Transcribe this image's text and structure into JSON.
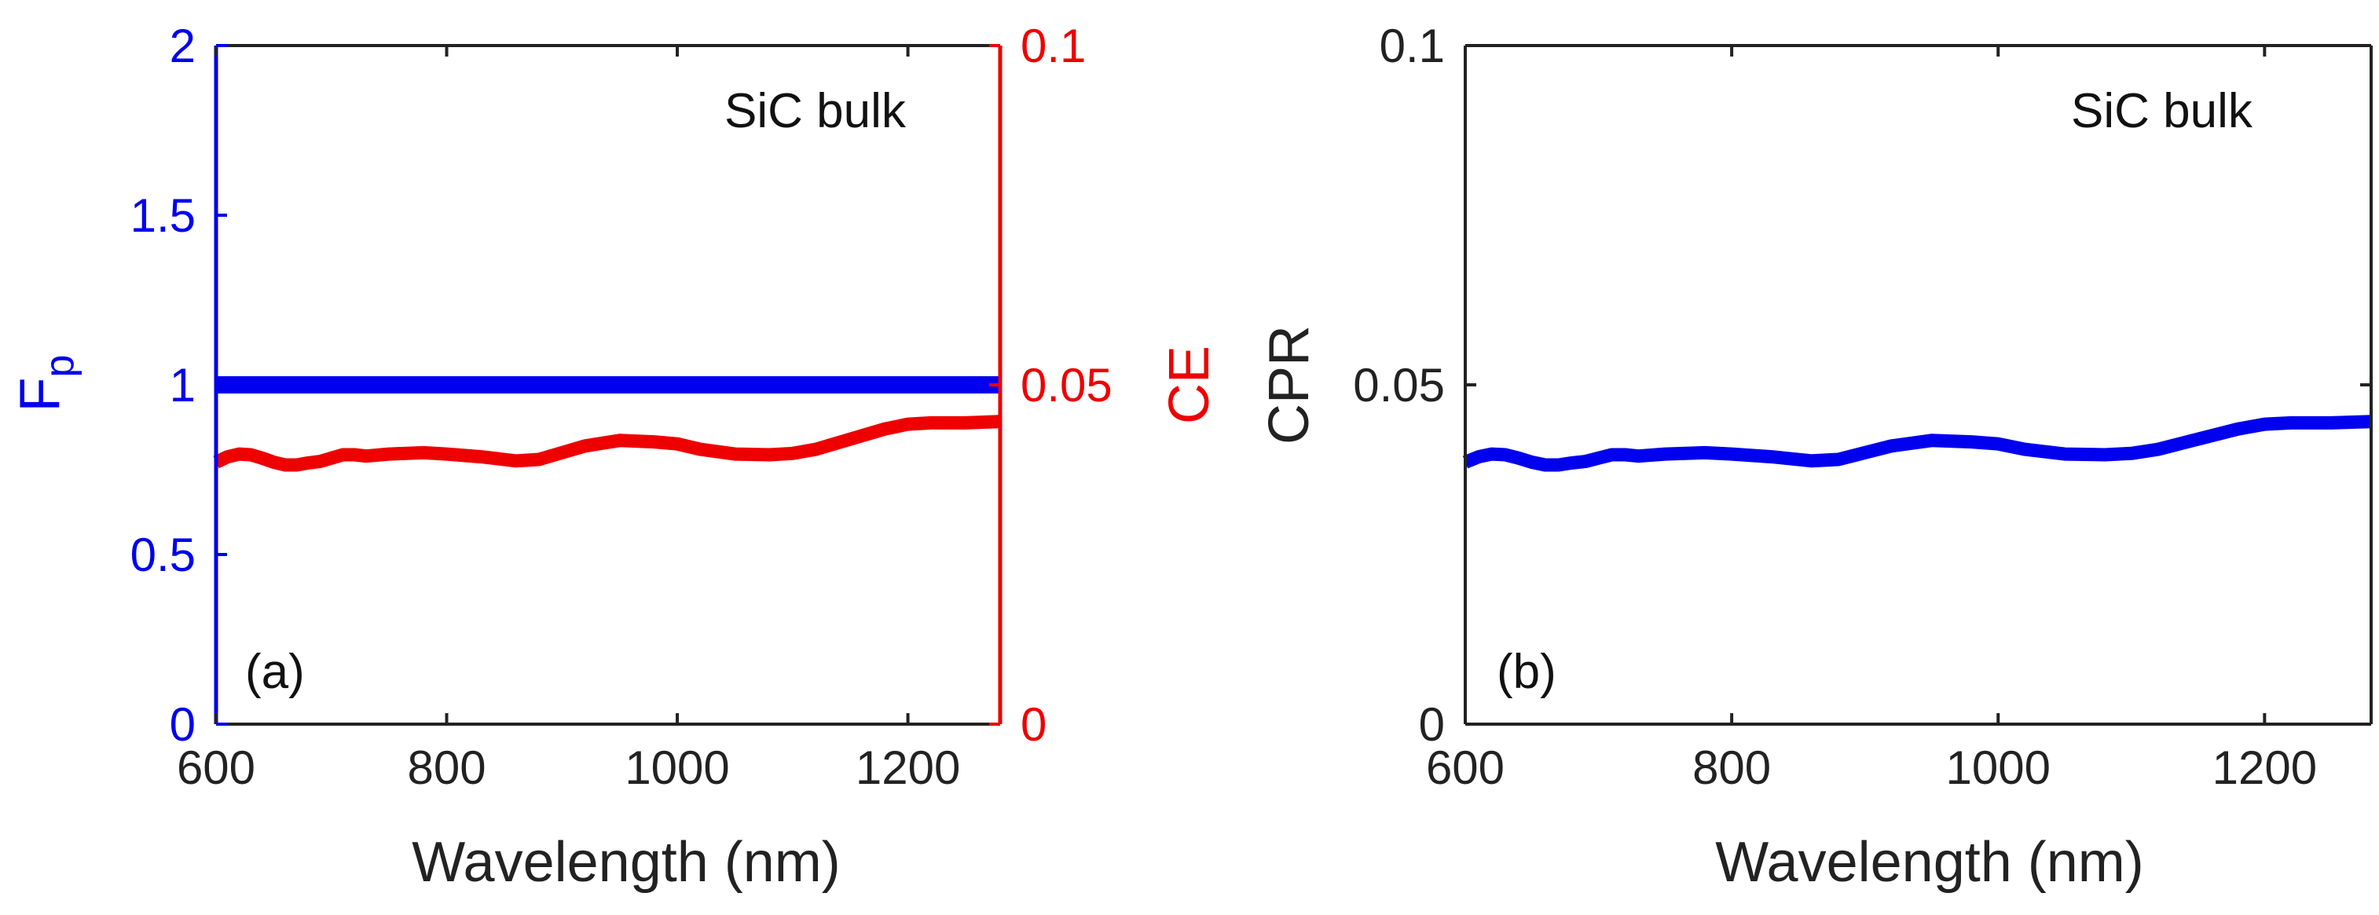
{
  "chart_data": [
    {
      "panel": "(a)",
      "type": "line",
      "annotation": "SiC bulk",
      "xlabel": "Wavelength (nm)",
      "xlim": [
        600,
        1280
      ],
      "xticks": [
        600,
        800,
        1000,
        1200
      ],
      "xtick_labels": [
        "600",
        "800",
        "1000",
        "1200"
      ],
      "ylabel_left": {
        "main": "F",
        "sub": "p"
      },
      "ylim_left": [
        0,
        2
      ],
      "yticks_left": [
        0,
        0.5,
        1,
        1.5,
        2
      ],
      "ytick_labels_left": [
        "0",
        "0.5",
        "1",
        "1.5",
        "2"
      ],
      "ylabel_right": "CE",
      "ylim_right": [
        0,
        0.1
      ],
      "yticks_right": [
        0,
        0.05,
        0.1
      ],
      "ytick_labels_right": [
        "0",
        "0.05",
        "0.1"
      ],
      "series": [
        {
          "name": "F_p",
          "axis": "left",
          "color": "#0000ee",
          "x": [
            600,
            1280
          ],
          "values": [
            1.0,
            1.0
          ]
        },
        {
          "name": "CE",
          "axis": "right",
          "color": "#ee0000",
          "x": [
            600,
            610,
            620,
            630,
            640,
            650,
            660,
            670,
            680,
            690,
            700,
            710,
            720,
            730,
            750,
            780,
            800,
            830,
            860,
            880,
            900,
            920,
            950,
            980,
            1000,
            1020,
            1050,
            1080,
            1100,
            1120,
            1150,
            1180,
            1200,
            1220,
            1250,
            1280
          ],
          "values": [
            0.0386,
            0.0394,
            0.0398,
            0.0397,
            0.0392,
            0.0386,
            0.0382,
            0.0382,
            0.0385,
            0.0387,
            0.0392,
            0.0397,
            0.0397,
            0.0395,
            0.0398,
            0.04,
            0.0398,
            0.0394,
            0.0388,
            0.039,
            0.04,
            0.041,
            0.0418,
            0.0416,
            0.0413,
            0.0405,
            0.0398,
            0.0397,
            0.0399,
            0.0405,
            0.042,
            0.0435,
            0.0442,
            0.0444,
            0.0444,
            0.0446
          ]
        }
      ]
    },
    {
      "panel": "(b)",
      "type": "line",
      "annotation": "SiC bulk",
      "xlabel": "Wavelength (nm)",
      "xlim": [
        600,
        1280
      ],
      "xticks": [
        600,
        800,
        1000,
        1200
      ],
      "xtick_labels": [
        "600",
        "800",
        "1000",
        "1200"
      ],
      "ylabel": "CPR",
      "ylim": [
        0,
        0.1
      ],
      "yticks": [
        0,
        0.05,
        0.1
      ],
      "ytick_labels": [
        "0",
        "0.05",
        "0.1"
      ],
      "series": [
        {
          "name": "CPR",
          "color": "#0000ee",
          "x": [
            600,
            610,
            620,
            630,
            640,
            650,
            660,
            670,
            680,
            690,
            700,
            710,
            720,
            730,
            750,
            780,
            800,
            830,
            860,
            880,
            900,
            920,
            950,
            980,
            1000,
            1020,
            1050,
            1080,
            1100,
            1120,
            1150,
            1180,
            1200,
            1220,
            1250,
            1280
          ],
          "values": [
            0.0386,
            0.0394,
            0.0398,
            0.0397,
            0.0392,
            0.0386,
            0.0382,
            0.0382,
            0.0385,
            0.0387,
            0.0392,
            0.0397,
            0.0397,
            0.0395,
            0.0398,
            0.04,
            0.0398,
            0.0394,
            0.0388,
            0.039,
            0.04,
            0.041,
            0.0418,
            0.0416,
            0.0413,
            0.0405,
            0.0398,
            0.0397,
            0.0399,
            0.0405,
            0.042,
            0.0435,
            0.0442,
            0.0444,
            0.0444,
            0.0446
          ]
        }
      ]
    }
  ]
}
